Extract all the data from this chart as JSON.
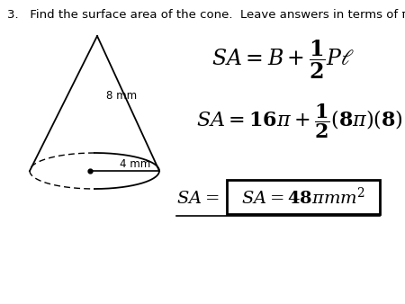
{
  "background_color": "#ffffff",
  "problem_number": "3.",
  "problem_text": "   Find the surface area of the cone.  Leave answers in terms of π.",
  "label_8mm": "8 mm",
  "label_4mm": "4 mm",
  "cone_color": "#000000",
  "formula1": "$SA = B + \\dfrac{1}{2}P\\ell$",
  "formula2": "$SA = 16\\pi + \\dfrac{1}{2}(8\\pi)(8)$",
  "sa_label": "$SA = $",
  "answer_text": "$SA = 48\\pi mm^2$",
  "fig_width": 4.5,
  "fig_height": 3.38,
  "dpi": 100
}
